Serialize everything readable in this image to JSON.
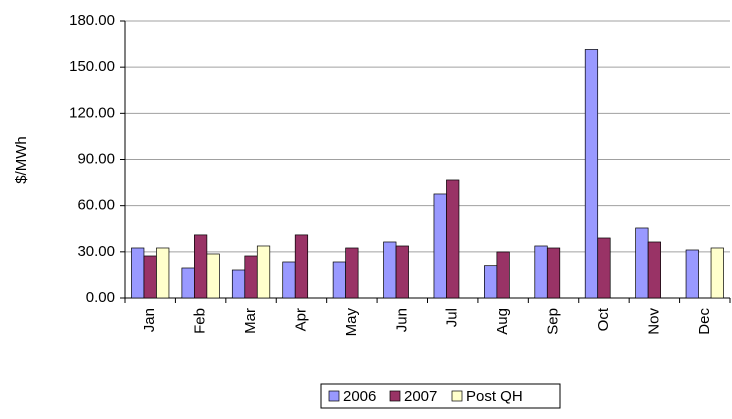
{
  "chart_data": {
    "type": "bar",
    "y_label": "$/MWh",
    "categories": [
      "Jan",
      "Feb",
      "Mar",
      "Apr",
      "May",
      "Jun",
      "Jul",
      "Aug",
      "Sep",
      "Oct",
      "Nov",
      "Dec"
    ],
    "series": [
      {
        "name": "2006",
        "color": "#9999ff",
        "values": [
          32.5,
          19.5,
          18.2,
          23.4,
          23.4,
          36.4,
          67.6,
          21,
          33.8,
          161.5,
          45.5,
          31.2
        ]
      },
      {
        "name": "2007",
        "color": "#993366",
        "values": [
          27.3,
          41,
          27.3,
          41,
          32.5,
          33.8,
          76.7,
          29.9,
          32.5,
          39,
          36.4,
          null
        ]
      },
      {
        "name": "Post QH",
        "color": "#ffffcc",
        "values": [
          32.5,
          28.6,
          33.8,
          null,
          null,
          null,
          null,
          null,
          null,
          null,
          null,
          32.5
        ]
      }
    ],
    "ylim": [
      0,
      180
    ],
    "yticks": [
      {
        "value": 0,
        "label": "0.00"
      },
      {
        "value": 30,
        "label": "30.00"
      },
      {
        "value": 60,
        "label": "60.00"
      },
      {
        "value": 90,
        "label": "90.00"
      },
      {
        "value": 120,
        "label": "120.00"
      },
      {
        "value": 150,
        "label": "150.00"
      },
      {
        "value": 180,
        "label": "180.00"
      }
    ],
    "grid": true,
    "legend": "bottom"
  }
}
